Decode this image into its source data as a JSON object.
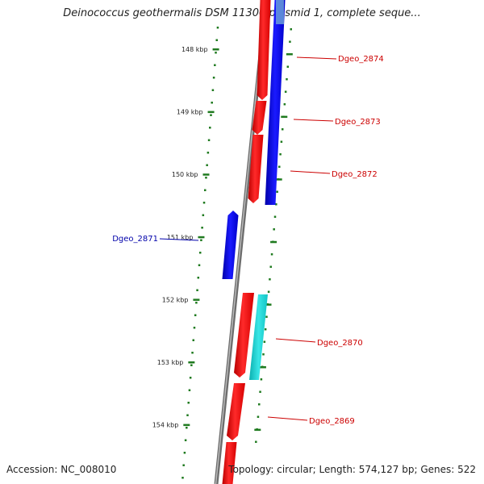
{
  "title": "Deinococcus geothermalis DSM 11300 plasmid 1, complete seque...",
  "footer": {
    "accession": "Accession: NC_008010",
    "summary": "Topology: circular; Length: 574,127 bp; Genes: 522"
  },
  "colors": {
    "forward_gene": "#ff0000",
    "reverse_gene": "#0000ff",
    "cyan_gene": "#17d4d4",
    "backbone": "#888888",
    "ticks": "#1f7a1f",
    "forward_label": "#cc0000",
    "reverse_label": "#0000aa"
  },
  "scale": {
    "unit": "kbp",
    "major_ticks": [
      {
        "kbp": 148,
        "label": "148 kbp"
      },
      {
        "kbp": 149,
        "label": "149 kbp"
      },
      {
        "kbp": 150,
        "label": "150 kbp"
      },
      {
        "kbp": 151,
        "label": "151 kbp"
      },
      {
        "kbp": 152,
        "label": "152 kbp"
      },
      {
        "kbp": 153,
        "label": "153 kbp"
      },
      {
        "kbp": 154,
        "label": "154 kbp"
      }
    ]
  },
  "genes": [
    {
      "name": "Dgeo_2874",
      "strand": "forward",
      "track": "outer"
    },
    {
      "name": "Dgeo_2873",
      "strand": "forward",
      "track": "outer"
    },
    {
      "name": "Dgeo_2872",
      "strand": "forward",
      "track": "outer"
    },
    {
      "name": "Dgeo_2871",
      "strand": "reverse",
      "track": "inner"
    },
    {
      "name": "Dgeo_2870",
      "strand": "forward",
      "track": "outer"
    },
    {
      "name": "Dgeo_2869",
      "strand": "forward",
      "track": "outer"
    }
  ]
}
